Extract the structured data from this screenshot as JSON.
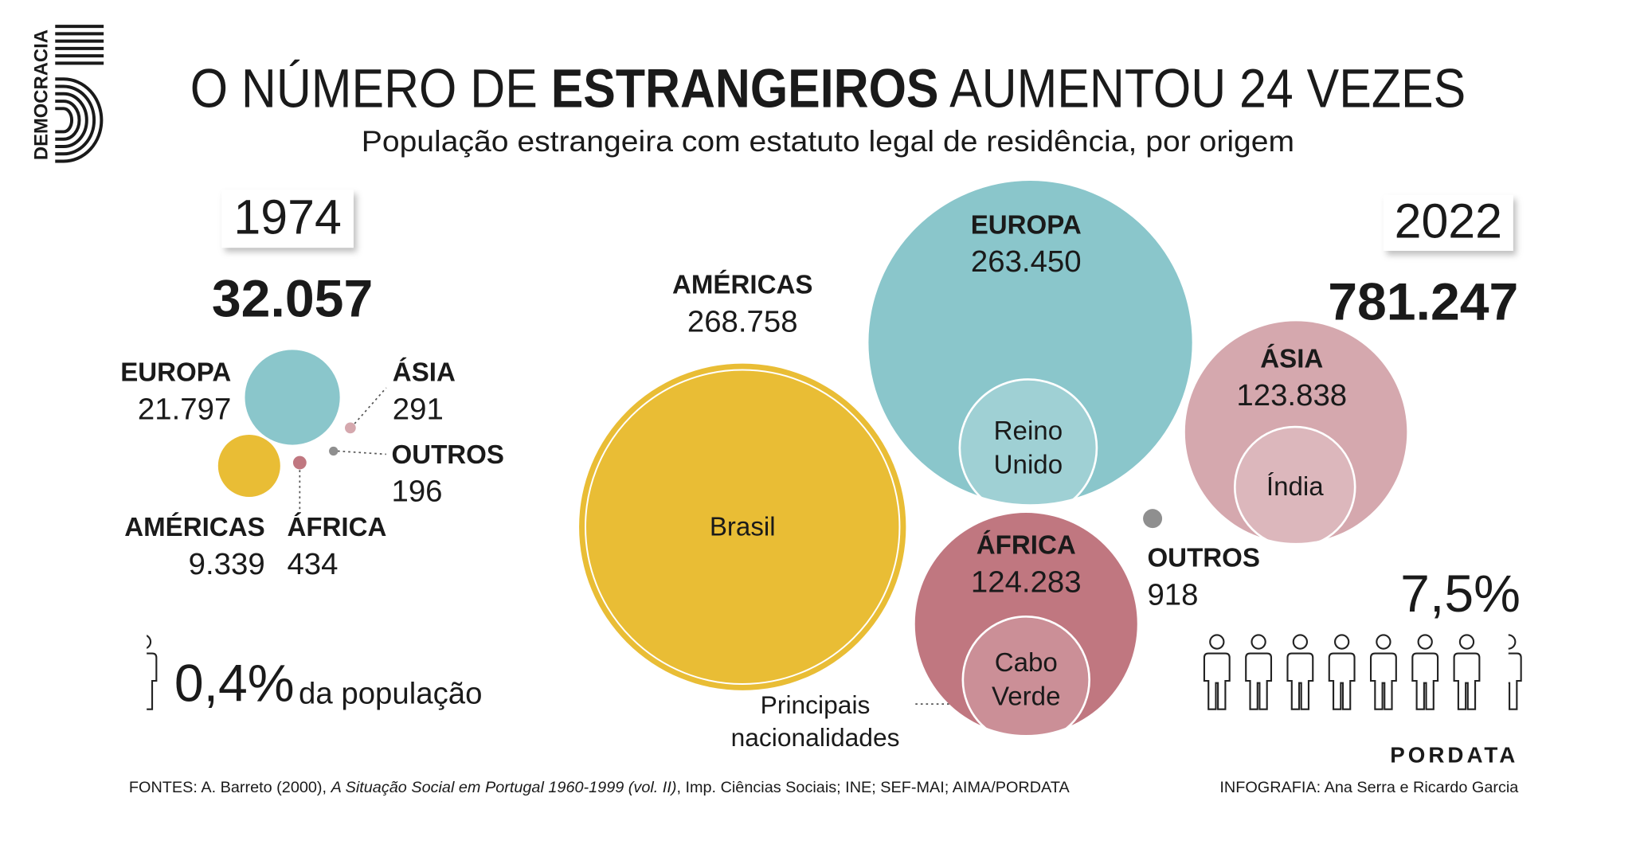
{
  "header": {
    "title_parts": [
      "O NÚMERO DE ",
      "ESTRANGEIROS",
      " AUMENTOU 24 VEZES"
    ],
    "subtitle": "População estrangeira com estatuto legal de residência, por origem",
    "logo": "DEMOCRACIA"
  },
  "chart_data": [
    {
      "type": "bubble",
      "year": "1974",
      "total": 32057,
      "total_label": "32.057",
      "categories": [
        "EUROPA",
        "AMÉRICAS",
        "ÁSIA",
        "ÁFRICA",
        "OUTROS"
      ],
      "values": [
        21797,
        9339,
        291,
        434,
        196
      ],
      "value_labels": [
        "21.797",
        "9.339",
        "291",
        "434",
        "196"
      ],
      "colors": [
        "#8ac6cb",
        "#e9bd35",
        "#d5a8ae",
        "#c07780",
        "#8f8f8f"
      ],
      "label_colors": [
        "#7bbfc6",
        "#e2b620",
        "#d6a3ab",
        "#b5606b",
        "#a8a8a8"
      ],
      "share": 0.4,
      "share_label": "0,4%",
      "share_text": "da população"
    },
    {
      "type": "bubble",
      "year": "2022",
      "total": 781247,
      "total_label": "781.247",
      "categories": [
        "EUROPA",
        "AMÉRICAS",
        "ÁSIA",
        "ÁFRICA",
        "OUTROS"
      ],
      "values": [
        263450,
        268758,
        123838,
        124283,
        918
      ],
      "value_labels": [
        "263.450",
        "268.758",
        "123.838",
        "124.283",
        "918"
      ],
      "colors": [
        "#8ac6cb",
        "#e9bd35",
        "#d5a8ae",
        "#c07780",
        "#8f8f8f"
      ],
      "label_colors": [
        "#ffffff",
        "#e2b620",
        "#ffffff",
        "#ffffff",
        "#a8a8a8"
      ],
      "main_nationalities": [
        "Reino Unido",
        "Brasil",
        "Índia",
        "Cabo Verde",
        null
      ],
      "nationalities_note": "Principais nacionalidades",
      "share": 7.5,
      "share_label": "7,5%"
    }
  ],
  "footer": {
    "sources_parts": [
      "FONTES: A. Barreto (2000), ",
      "A Situação Social em Portugal 1960-1999 (vol. II)",
      ", Imp. Ciências Sociais; INE; SEF-MAI; AIMA/PORDATA"
    ],
    "credits": "INFOGRAFIA: Ana Serra e Ricardo Garcia",
    "brand": "PORDATA"
  }
}
